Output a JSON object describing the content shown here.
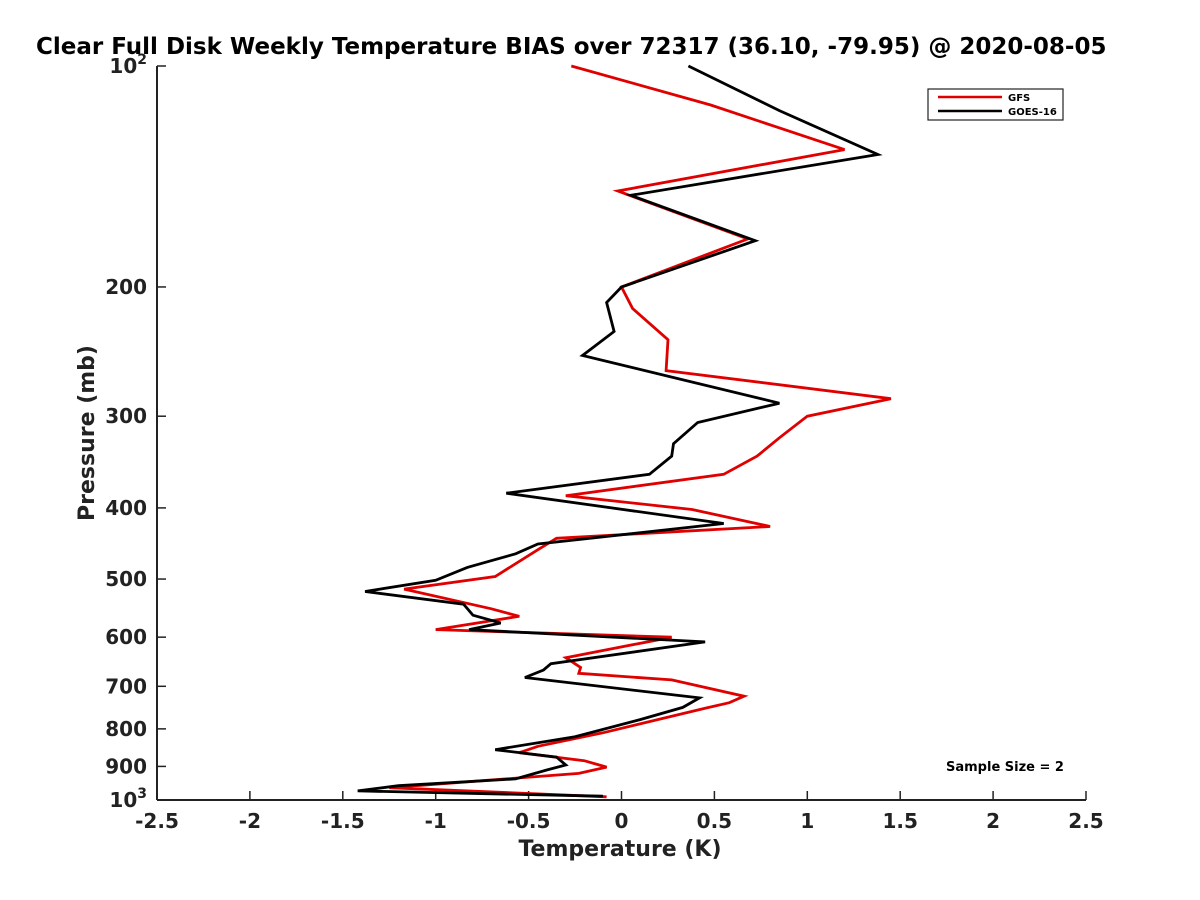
{
  "chart_data": {
    "type": "line",
    "title": "Clear Full Disk Weekly Temperature BIAS over 72317 (36.10, -79.95) @ 2020-08-05",
    "xlabel": "Temperature (K)",
    "ylabel": "Pressure (mb)",
    "xlim": [
      -2.5,
      2.5
    ],
    "ylim": [
      100,
      1000
    ],
    "yscale": "log",
    "y_reversed": true,
    "x_ticks": [
      "-2.5",
      "-2",
      "-1.5",
      "-1",
      "-0.5",
      "0",
      "0.5",
      "1",
      "1.5",
      "2",
      "2.5"
    ],
    "y_ticks": [
      {
        "value": 100,
        "base": "10",
        "exp": "2"
      },
      {
        "value": 200,
        "label": "200"
      },
      {
        "value": 300,
        "label": "300"
      },
      {
        "value": 400,
        "label": "400"
      },
      {
        "value": 500,
        "label": "500"
      },
      {
        "value": 600,
        "label": "600"
      },
      {
        "value": 700,
        "label": "700"
      },
      {
        "value": 800,
        "label": "800"
      },
      {
        "value": 900,
        "label": "900"
      },
      {
        "value": 1000,
        "base": "10",
        "exp": "3"
      }
    ],
    "grid": false,
    "legend_position": "top-right",
    "annotation": "Sample Size = 2",
    "series": [
      {
        "name": "GFS",
        "color": "#e00000",
        "points": [
          [
            -0.27,
            100
          ],
          [
            0.48,
            113
          ],
          [
            1.2,
            130
          ],
          [
            -0.02,
            148
          ],
          [
            0.68,
            172
          ],
          [
            0.0,
            200
          ],
          [
            0.06,
            214
          ],
          [
            0.25,
            236
          ],
          [
            0.24,
            260
          ],
          [
            1.45,
            284
          ],
          [
            1.0,
            300
          ],
          [
            0.85,
            321
          ],
          [
            0.73,
            340
          ],
          [
            0.55,
            360
          ],
          [
            -0.3,
            385
          ],
          [
            0.38,
            402
          ],
          [
            0.8,
            424
          ],
          [
            -0.35,
            440
          ],
          [
            -0.45,
            456
          ],
          [
            -0.68,
            496
          ],
          [
            -1.17,
            516
          ],
          [
            -0.7,
            549
          ],
          [
            -0.55,
            562
          ],
          [
            -1.0,
            586
          ],
          [
            0.27,
            600
          ],
          [
            -0.3,
            640
          ],
          [
            -0.22,
            660
          ],
          [
            -0.23,
            672
          ],
          [
            0.27,
            686
          ],
          [
            0.66,
            722
          ],
          [
            0.58,
            737
          ],
          [
            0.45,
            750
          ],
          [
            -0.1,
            810
          ],
          [
            -0.45,
            845
          ],
          [
            -0.55,
            862
          ],
          [
            -0.2,
            884
          ],
          [
            -0.08,
            902
          ],
          [
            -0.23,
            920
          ],
          [
            -1.25,
            962
          ],
          [
            -0.08,
            990
          ]
        ]
      },
      {
        "name": "GOES-16",
        "color": "#000000",
        "points": [
          [
            0.36,
            100
          ],
          [
            0.85,
            115
          ],
          [
            1.38,
            132
          ],
          [
            0.05,
            150
          ],
          [
            0.72,
            173
          ],
          [
            0.0,
            200
          ],
          [
            -0.08,
            210
          ],
          [
            -0.04,
            230
          ],
          [
            -0.21,
            248
          ],
          [
            0.85,
            288
          ],
          [
            0.41,
            306
          ],
          [
            0.28,
            327
          ],
          [
            0.27,
            340
          ],
          [
            0.15,
            360
          ],
          [
            -0.62,
            382
          ],
          [
            0.55,
            420
          ],
          [
            -0.45,
            448
          ],
          [
            -0.57,
            462
          ],
          [
            -0.83,
            482
          ],
          [
            -1.0,
            502
          ],
          [
            -1.38,
            520
          ],
          [
            -0.85,
            541
          ],
          [
            -0.8,
            560
          ],
          [
            -0.65,
            574
          ],
          [
            -0.82,
            586
          ],
          [
            0.45,
            609
          ],
          [
            -0.38,
            652
          ],
          [
            -0.42,
            665
          ],
          [
            -0.52,
            681
          ],
          [
            0.42,
            726
          ],
          [
            0.33,
            748
          ],
          [
            0.1,
            777
          ],
          [
            -0.25,
            820
          ],
          [
            -0.68,
            854
          ],
          [
            -0.35,
            874
          ],
          [
            -0.3,
            896
          ],
          [
            -0.4,
            910
          ],
          [
            -0.57,
            936
          ],
          [
            -1.2,
            956
          ],
          [
            -1.42,
            972
          ],
          [
            -0.1,
            988
          ]
        ]
      }
    ]
  }
}
